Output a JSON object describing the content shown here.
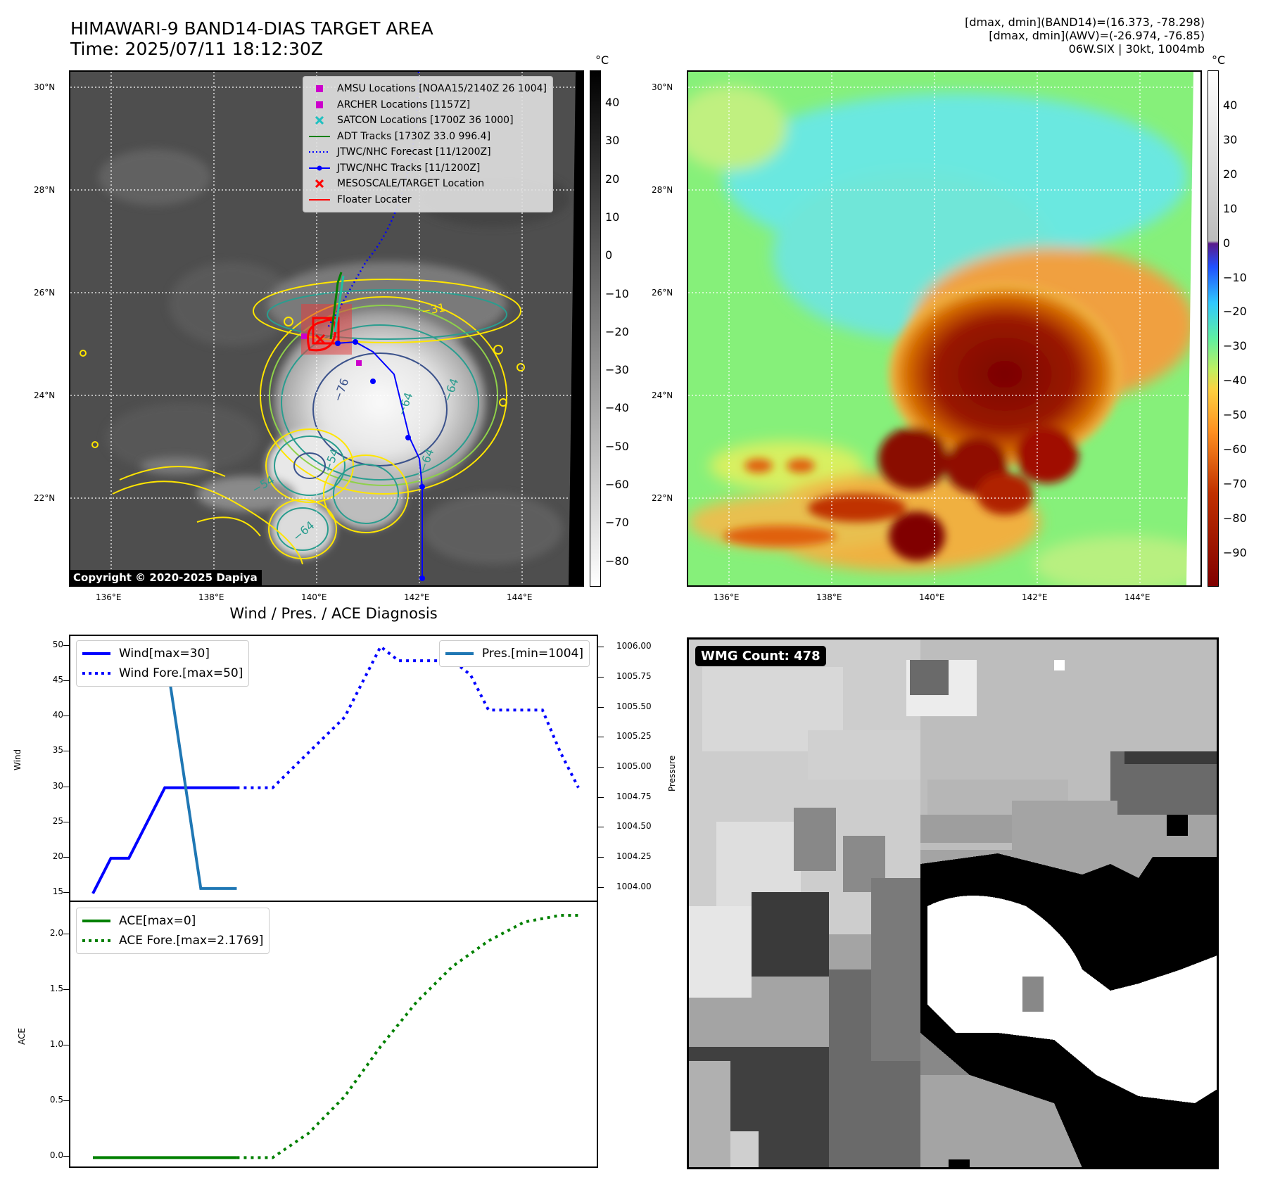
{
  "header": {
    "title_line1": "HIMAWARI-9 BAND14-DIAS TARGET AREA",
    "title_line2": "Time: 2025/07/11 18:12:30Z",
    "right_line1": "[dmax, dmin](BAND14)=(16.373, -78.298)",
    "right_line2": "[dmax, dmin](AWV)=(-26.974, -76.85)",
    "right_line3": "06W.SIX | 30kt, 1004mb"
  },
  "map": {
    "lat_labels": [
      "30°N",
      "28°N",
      "26°N",
      "24°N",
      "22°N"
    ],
    "lon_labels": [
      "136°E",
      "138°E",
      "140°E",
      "142°E",
      "144°E"
    ],
    "copyright": "Copyright © 2020-2025 Dapiya",
    "contour_labels": [
      "−76",
      "−64",
      "−64",
      "−64",
      "−54",
      "−54",
      "−64",
      "−31"
    ],
    "legend": [
      {
        "label": "AMSU Locations [NOAA15/2140Z 26 1004]",
        "color": "#cc00cc",
        "symbol": "square"
      },
      {
        "label": "ARCHER Locations [1157Z]",
        "color": "#cc00cc",
        "symbol": "square"
      },
      {
        "label": "SATCON Locations [1700Z 36 1000]",
        "color": "#20c0c0",
        "symbol": "x"
      },
      {
        "label": "ADT Tracks [1730Z 33.0 996.4]",
        "color": "#008000",
        "symbol": "line"
      },
      {
        "label": "JTWC/NHC Forecast [11/1200Z]",
        "color": "#0000ff",
        "symbol": "dotted"
      },
      {
        "label": "JTWC/NHC Tracks [11/1200Z]",
        "color": "#0000ff",
        "symbol": "line-dot"
      },
      {
        "label": "MESOSCALE/TARGET Location",
        "color": "#ff0000",
        "symbol": "x"
      },
      {
        "label": "Floater Locater",
        "color": "#ff0000",
        "symbol": "line"
      }
    ]
  },
  "colorbar_left": {
    "unit": "°C",
    "ticks": [
      "40",
      "30",
      "20",
      "10",
      "0",
      "−10",
      "−20",
      "−30",
      "−40",
      "−50",
      "−60",
      "−70",
      "−80"
    ]
  },
  "colorbar_right": {
    "unit": "°C",
    "ticks": [
      "40",
      "30",
      "20",
      "10",
      "0",
      "−10",
      "−20",
      "−30",
      "−40",
      "−50",
      "−60",
      "−70",
      "−80",
      "−90"
    ]
  },
  "colors": {
    "wind": "#0000ff",
    "pressure": "#1f77b4",
    "ace": "#008000",
    "cold": "#8b0000",
    "warm": "#7fff7f"
  },
  "diag_title": "Wind / Pres. / ACE Diagnosis",
  "wmg_count": "WMG Count: 478",
  "chart_data": [
    {
      "type": "line",
      "title": "Wind / Pres. / ACE Diagnosis",
      "ylabel": "Wind",
      "y2label": "Pressure",
      "ylim": [
        14,
        51.5
      ],
      "y2lim": [
        3.9,
        6.1
      ],
      "yticks": [
        "15",
        "20",
        "25",
        "30",
        "35",
        "40",
        "45",
        "50"
      ],
      "y2ticks": [
        "1004.00",
        "1004.25",
        "1004.50",
        "1004.75",
        "1005.00",
        "1005.25",
        "1005.50",
        "1005.75",
        "1006.00"
      ],
      "series": [
        {
          "name": "Wind[max=30]",
          "axis": "left",
          "style": "solid",
          "color": "#0000ff",
          "x": [
            0,
            1,
            2,
            4,
            5,
            6,
            7,
            8
          ],
          "values": [
            15,
            20,
            20,
            30,
            30,
            30,
            30,
            30
          ]
        },
        {
          "name": "Wind Fore.[max=50]",
          "axis": "left",
          "style": "dotted",
          "color": "#0000ff",
          "x": [
            8,
            10,
            12,
            14,
            16,
            17,
            18,
            19,
            20,
            21,
            22,
            23,
            24,
            25,
            26,
            27
          ],
          "values": [
            30,
            30,
            35,
            40,
            50,
            48,
            48,
            48,
            48,
            46,
            41,
            41,
            41,
            41,
            35,
            30
          ]
        },
        {
          "name": "Pres.[min=1004]",
          "axis": "right",
          "style": "solid",
          "color": "#1f77b4",
          "x": [
            0,
            4,
            5,
            6,
            8
          ],
          "values": [
            1006,
            1006,
            1005,
            1004,
            1004
          ]
        }
      ]
    },
    {
      "type": "line",
      "ylabel": "ACE",
      "ylim": [
        -0.08,
        2.3
      ],
      "yticks": [
        "0.0",
        "0.5",
        "1.0",
        "1.5",
        "2.0"
      ],
      "series": [
        {
          "name": "ACE[max=0]",
          "style": "solid",
          "color": "#008000",
          "x": [
            0,
            8
          ],
          "values": [
            0,
            0
          ]
        },
        {
          "name": "ACE Fore.[max=2.1769]",
          "style": "dotted",
          "color": "#008000",
          "x": [
            8,
            10,
            12,
            14,
            16,
            18,
            20,
            22,
            24,
            26,
            27
          ],
          "values": [
            0,
            0,
            0.22,
            0.55,
            1.0,
            1.4,
            1.72,
            1.95,
            2.12,
            2.18,
            2.18
          ]
        }
      ]
    }
  ]
}
